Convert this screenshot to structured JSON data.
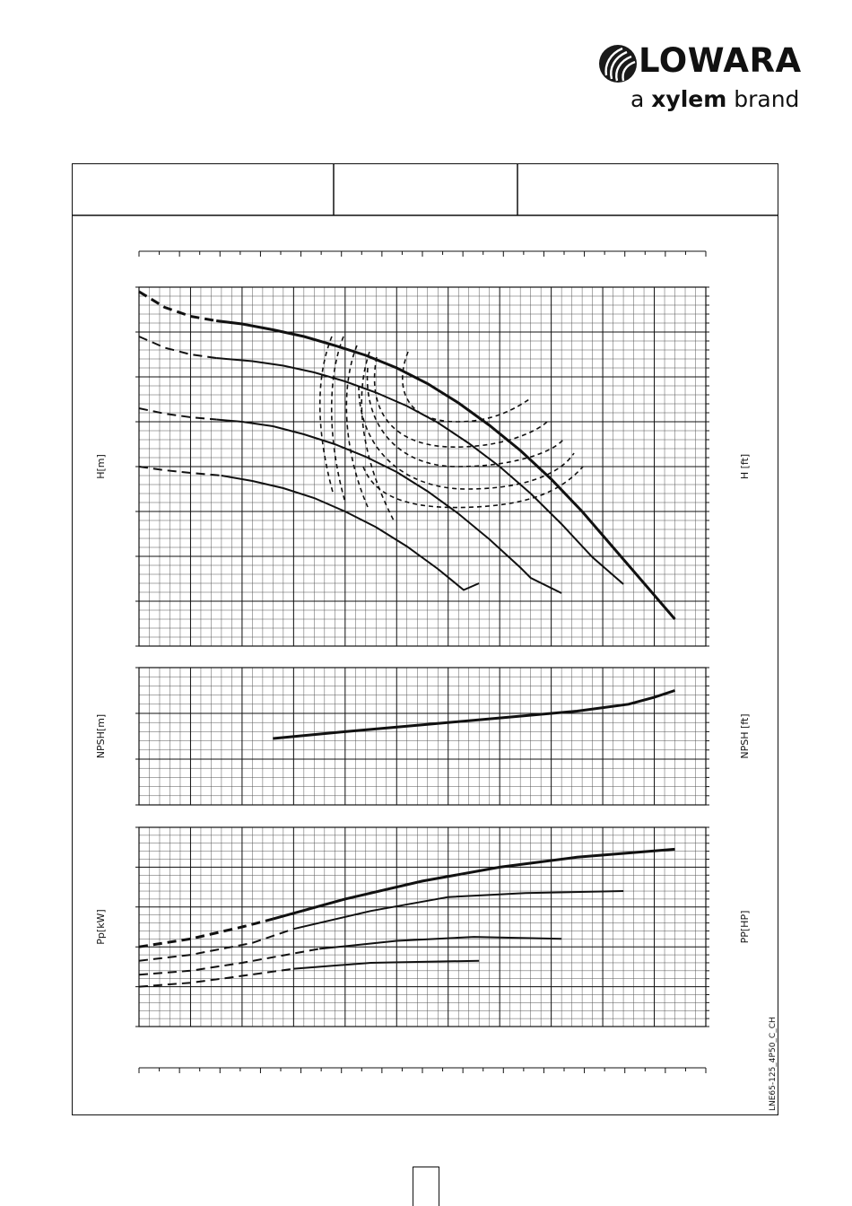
{
  "brand": {
    "name": "LOWARA",
    "tagline_prefix": "a",
    "tagline_bold": "xylem",
    "tagline_suffix": "brand"
  },
  "chart_code": "LNE65-125_4P50_C_CH",
  "chart_data": [
    {
      "type": "line",
      "title": "",
      "ylabel_left": "H[m]",
      "ylabel_right": "H [ft]",
      "xlim": [
        0,
        11
      ],
      "ylim": [
        0,
        8
      ],
      "grid": true,
      "series": [
        {
          "style": "bold",
          "x": [
            0.0,
            0.5,
            1.0,
            1.5,
            2.0,
            2.6,
            3.2,
            3.8,
            4.4,
            5.0,
            5.6,
            6.2,
            6.8,
            7.4,
            8.0,
            8.6,
            9.2,
            9.8,
            10.4
          ],
          "y": [
            7.9,
            7.55,
            7.35,
            7.25,
            7.18,
            7.05,
            6.9,
            6.7,
            6.48,
            6.2,
            5.85,
            5.42,
            4.92,
            4.36,
            3.72,
            3.0,
            2.2,
            1.4,
            0.6
          ]
        },
        {
          "style": "normal",
          "x": [
            0.0,
            0.5,
            1.0,
            1.5,
            2.2,
            2.8,
            3.4,
            4.0,
            4.6,
            5.2,
            5.8,
            6.4,
            7.0,
            7.6,
            8.2,
            8.8,
            9.4
          ],
          "y": [
            6.9,
            6.65,
            6.5,
            6.42,
            6.35,
            6.25,
            6.1,
            5.9,
            5.65,
            5.35,
            4.98,
            4.52,
            4.0,
            3.4,
            2.72,
            1.98,
            1.38
          ]
        },
        {
          "style": "normal",
          "x": [
            0.0,
            0.5,
            1.0,
            1.5,
            2.0,
            2.6,
            3.2,
            3.8,
            4.4,
            5.0,
            5.6,
            6.2,
            6.8,
            7.4,
            7.6,
            8.2
          ],
          "y": [
            5.3,
            5.18,
            5.1,
            5.05,
            5.0,
            4.9,
            4.72,
            4.5,
            4.22,
            3.88,
            3.45,
            2.95,
            2.38,
            1.75,
            1.52,
            1.18
          ]
        },
        {
          "style": "normal",
          "x": [
            0.0,
            0.5,
            1.0,
            1.6,
            2.2,
            2.8,
            3.4,
            4.0,
            4.6,
            5.2,
            5.8,
            6.3,
            6.6
          ],
          "y": [
            4.0,
            3.92,
            3.86,
            3.8,
            3.68,
            3.52,
            3.3,
            3.0,
            2.65,
            2.22,
            1.72,
            1.25,
            1.4
          ]
        }
      ]
    },
    {
      "type": "line",
      "title": "",
      "ylabel_left": "NPSH[m]",
      "ylabel_right": "NPSH [ft]",
      "xlim": [
        0,
        11
      ],
      "ylim": [
        0,
        3
      ],
      "grid": true,
      "series": [
        {
          "style": "bold",
          "x": [
            2.6,
            4.0,
            5.5,
            7.0,
            8.5,
            9.5,
            10.0,
            10.4
          ],
          "y": [
            1.45,
            1.6,
            1.75,
            1.9,
            2.05,
            2.2,
            2.35,
            2.5
          ]
        }
      ]
    },
    {
      "type": "line",
      "title": "",
      "ylabel_left": "Pp[kW]",
      "ylabel_right": "PP[HP]",
      "xlim": [
        0,
        11
      ],
      "ylim": [
        0,
        5
      ],
      "grid": true,
      "series": [
        {
          "style": "bold",
          "x": [
            0.0,
            1.0,
            2.0,
            2.6,
            4.0,
            5.5,
            7.0,
            8.5,
            10.4
          ],
          "y": [
            2.0,
            2.2,
            2.5,
            2.7,
            3.2,
            3.65,
            4.0,
            4.25,
            4.45
          ]
        },
        {
          "style": "normal",
          "x": [
            0.0,
            1.0,
            2.2,
            3.0,
            4.5,
            6.0,
            7.5,
            9.4
          ],
          "y": [
            1.65,
            1.8,
            2.1,
            2.45,
            2.9,
            3.25,
            3.35,
            3.4
          ]
        },
        {
          "style": "normal",
          "x": [
            0.0,
            1.0,
            2.0,
            3.5,
            5.0,
            6.5,
            8.2
          ],
          "y": [
            1.3,
            1.4,
            1.6,
            1.95,
            2.15,
            2.25,
            2.2
          ]
        },
        {
          "style": "normal",
          "x": [
            0.0,
            1.0,
            1.6,
            3.0,
            4.5,
            6.6
          ],
          "y": [
            1.0,
            1.1,
            1.2,
            1.45,
            1.6,
            1.65
          ]
        }
      ]
    }
  ]
}
